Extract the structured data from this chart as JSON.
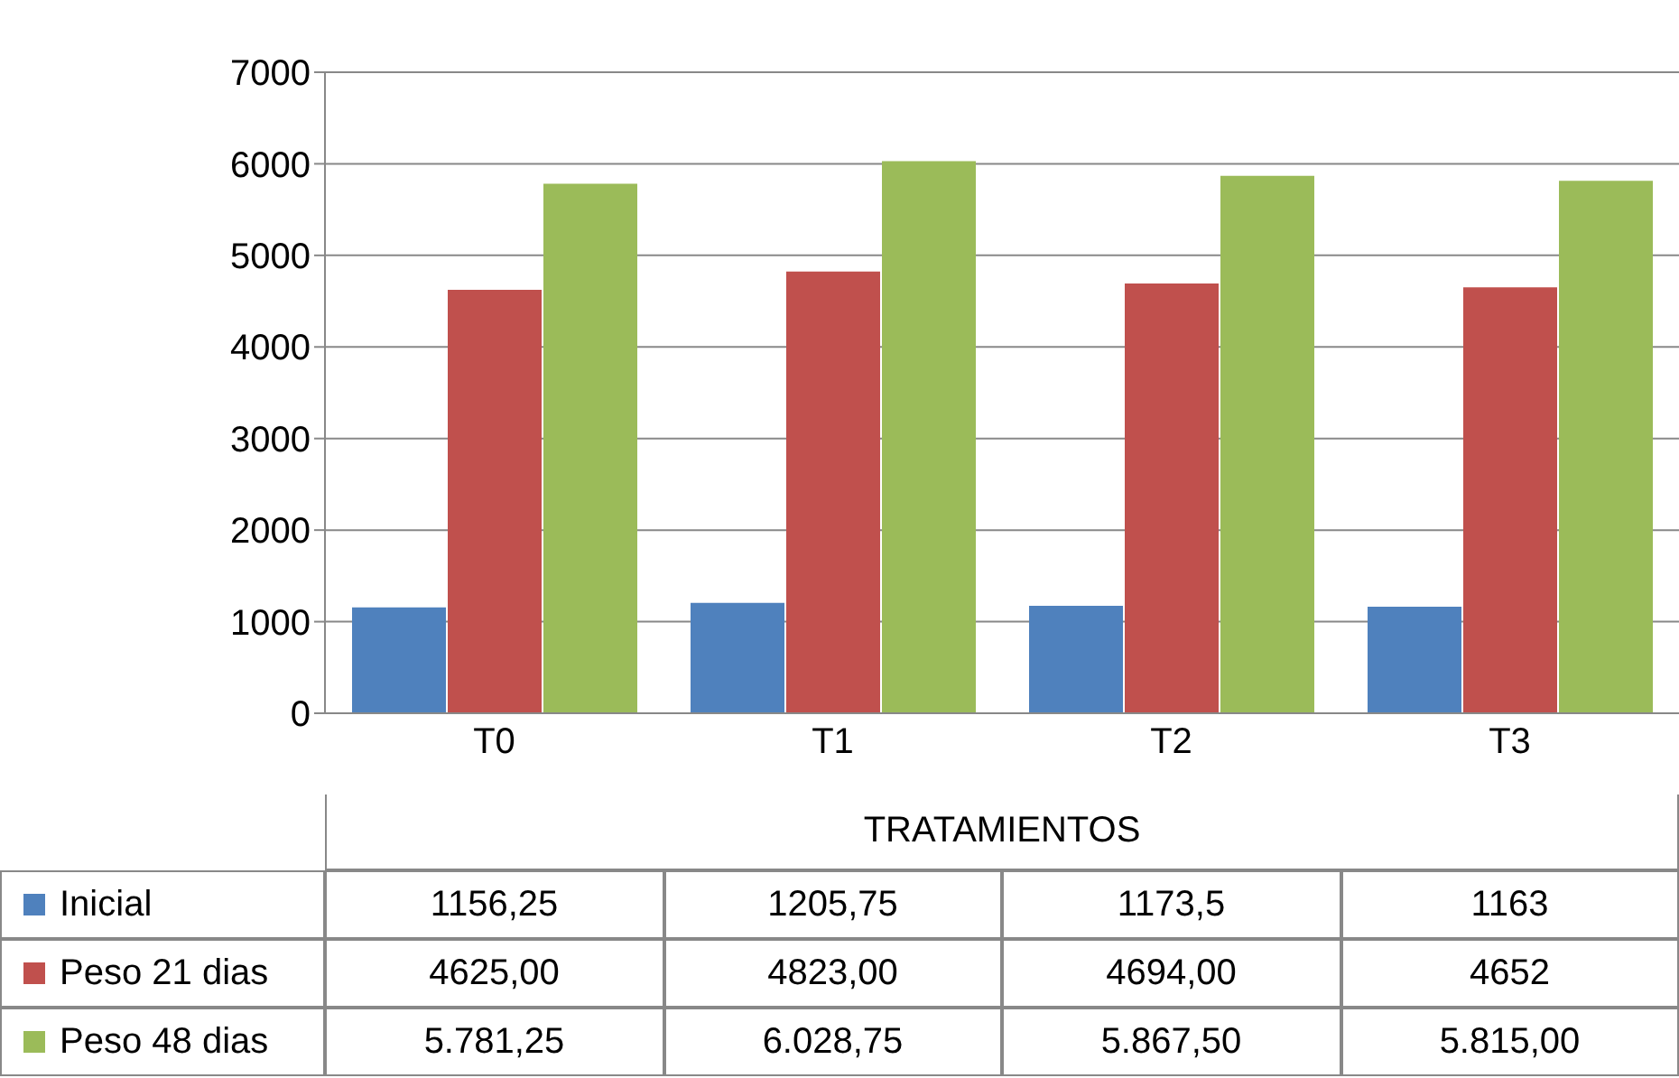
{
  "chart_data": {
    "type": "bar",
    "xlabel": "TRATAMIENTOS",
    "categories": [
      "T0",
      "T1",
      "T2",
      "T3"
    ],
    "series": [
      {
        "name": "Inicial",
        "color": "#4f81bd",
        "values": [
          1156.25,
          1205.75,
          1173.5,
          1163
        ],
        "value_labels": [
          "1156,25",
          "1205,75",
          "1173,5",
          "1163"
        ]
      },
      {
        "name": "Peso 21 dias",
        "color": "#c0504d",
        "values": [
          4625,
          4823,
          4694,
          4652
        ],
        "value_labels": [
          "4625,00",
          "4823,00",
          "4694,00",
          "4652"
        ]
      },
      {
        "name": "Peso 48 dias",
        "color": "#9bbb59",
        "values": [
          5781.25,
          6028.75,
          5867.5,
          5815
        ],
        "value_labels": [
          "5.781,25",
          "6.028,75",
          "5.867,50",
          "5.815,00"
        ]
      }
    ],
    "ylim": [
      0,
      7000
    ],
    "yticks": [
      0,
      1000,
      2000,
      3000,
      4000,
      5000,
      6000,
      7000
    ],
    "grid": "y",
    "legend": "bottom"
  }
}
